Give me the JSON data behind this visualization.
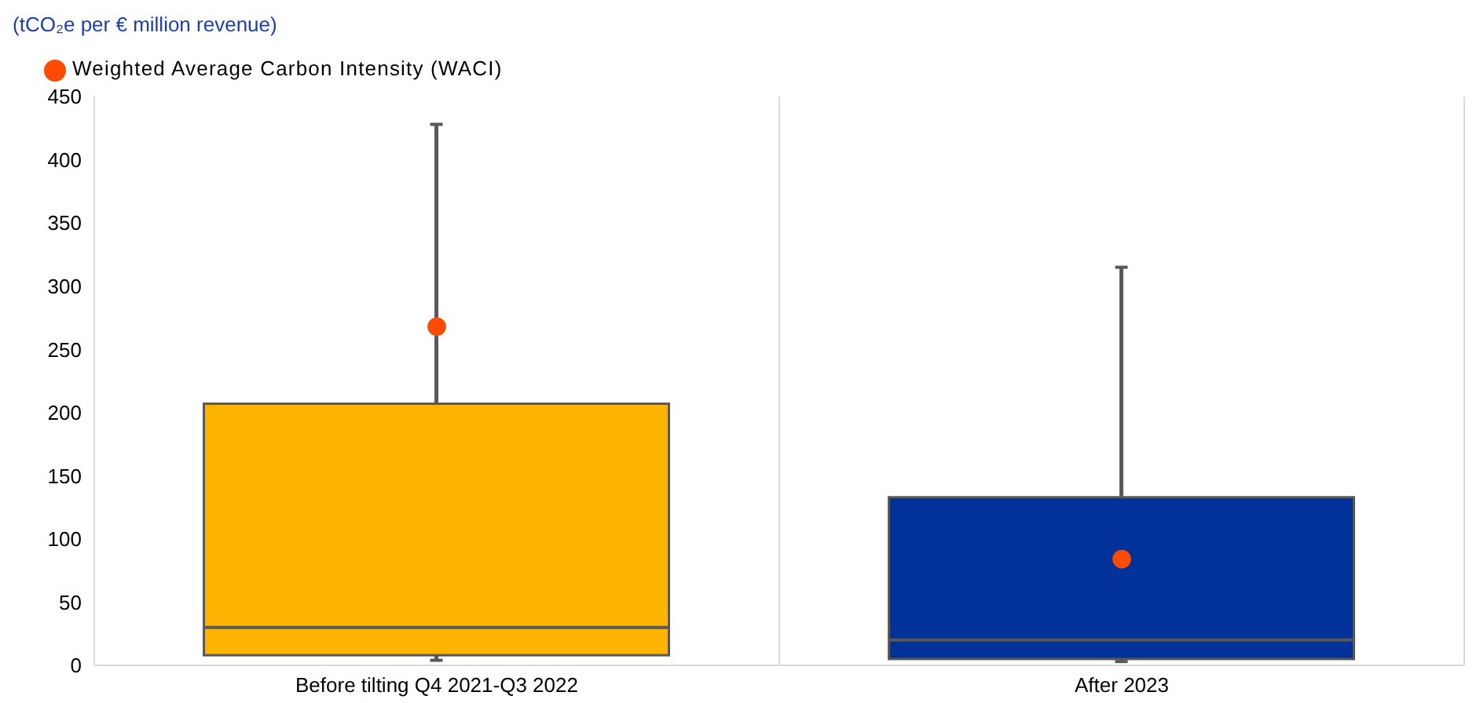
{
  "chart_data": {
    "type": "box",
    "ylabel": "(tCO₂e per € million revenue)",
    "categories": [
      "Before tilting Q4 2021-Q3 2022",
      "After 2023"
    ],
    "boxes": [
      {
        "low": 4,
        "q1": 8,
        "median": 30,
        "q3": 207,
        "high": 428
      },
      {
        "low": 3,
        "q1": 5,
        "median": 20,
        "q3": 133,
        "high": 315
      }
    ],
    "colors": [
      "#ffb400",
      "#003299"
    ],
    "series": [
      {
        "type": "scatter",
        "name": "Weighted Average Carbon Intensity (WACI)",
        "color": "#ff4b00",
        "x": [
          "Before tilting Q4 2021-Q3 2022",
          "After 2023"
        ],
        "values": [
          268,
          84
        ]
      }
    ],
    "ylim": [
      0,
      450
    ],
    "yticks": [
      0,
      50,
      100,
      150,
      200,
      250,
      300,
      350,
      400,
      450
    ],
    "grid": "x",
    "legend": "top left",
    "marker": "circle"
  }
}
